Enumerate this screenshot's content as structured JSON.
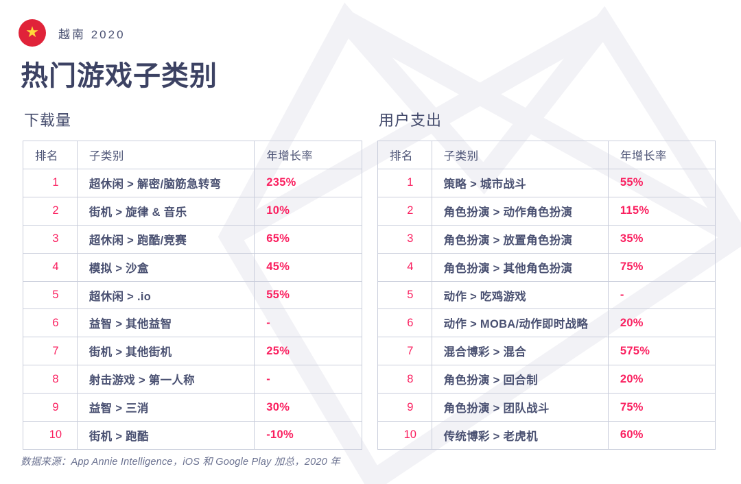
{
  "header": {
    "country_label": "越南 2020",
    "page_title": "热门游戏子类别",
    "flag_icon": "vietnam-flag",
    "flag_colors": {
      "circle": "#E02339",
      "star": "#FFD93B"
    }
  },
  "columns": [
    "排名",
    "子类别",
    "年增长率"
  ],
  "tables": [
    {
      "id": "downloads",
      "title": "下载量",
      "rows": [
        {
          "rank": "1",
          "subcategory": "超休闲 > 解密/脑筋急转弯",
          "growth": "235%"
        },
        {
          "rank": "2",
          "subcategory": "街机 > 旋律 & 音乐",
          "growth": "10%"
        },
        {
          "rank": "3",
          "subcategory": "超休闲 > 跑酷/竞赛",
          "growth": "65%"
        },
        {
          "rank": "4",
          "subcategory": "模拟 > 沙盒",
          "growth": "45%"
        },
        {
          "rank": "5",
          "subcategory": "超休闲 > .io",
          "growth": "55%"
        },
        {
          "rank": "6",
          "subcategory": "益智 > 其他益智",
          "growth": "-"
        },
        {
          "rank": "7",
          "subcategory": "街机 > 其他街机",
          "growth": "25%"
        },
        {
          "rank": "8",
          "subcategory": "射击游戏 > 第一人称",
          "growth": "-"
        },
        {
          "rank": "9",
          "subcategory": "益智 > 三消",
          "growth": "30%"
        },
        {
          "rank": "10",
          "subcategory": "街机 > 跑酷",
          "growth": "-10%"
        }
      ]
    },
    {
      "id": "user-spend",
      "title": "用户支出",
      "rows": [
        {
          "rank": "1",
          "subcategory": "策略 > 城市战斗",
          "growth": "55%"
        },
        {
          "rank": "2",
          "subcategory": "角色扮演 > 动作角色扮演",
          "growth": "115%"
        },
        {
          "rank": "3",
          "subcategory": "角色扮演 > 放置角色扮演",
          "growth": "35%"
        },
        {
          "rank": "4",
          "subcategory": "角色扮演 > 其他角色扮演",
          "growth": "75%"
        },
        {
          "rank": "5",
          "subcategory": "动作 > 吃鸡游戏",
          "growth": "-"
        },
        {
          "rank": "6",
          "subcategory": "动作 > MOBA/动作即时战略",
          "growth": "20%"
        },
        {
          "rank": "7",
          "subcategory": "混合博彩 > 混合",
          "growth": "575%"
        },
        {
          "rank": "8",
          "subcategory": "角色扮演 > 回合制",
          "growth": "20%"
        },
        {
          "rank": "9",
          "subcategory": "角色扮演 > 团队战斗",
          "growth": "75%"
        },
        {
          "rank": "10",
          "subcategory": "传统博彩 > 老虎机",
          "growth": "60%"
        }
      ]
    }
  ],
  "footer": {
    "source_note": "数据来源：App Annie Intelligence，iOS 和 Google Play 加总，2020 年"
  },
  "colors": {
    "accent_pink": "#FA1F5F",
    "text_dark": "#3C4263",
    "table_text": "#4A5172",
    "border": "#C9CDDB",
    "watermark": "#F2F2F6"
  }
}
